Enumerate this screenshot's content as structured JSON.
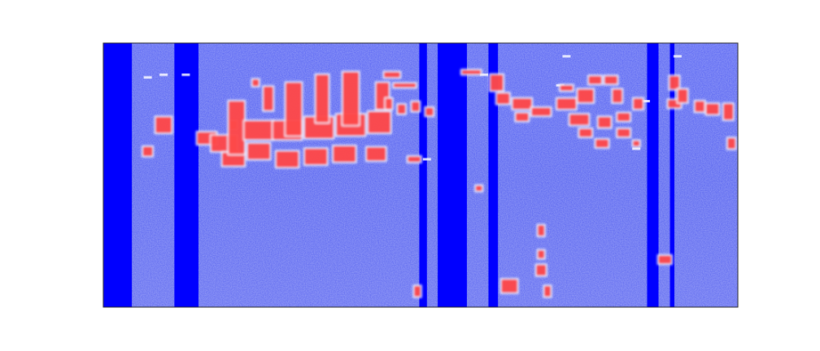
{
  "chart_data": {
    "type": "heatmap",
    "description_visible_text": "",
    "title": "",
    "xlabel": "",
    "ylabel": "",
    "axes_ticks": false,
    "grid": false,
    "legend": "none",
    "colormap": {
      "background": "#4a5af0",
      "strong_low": "#0000ff",
      "high": "#ff3030",
      "mid_high": "#f0f0ff"
    },
    "x_range": [
      0,
      1
    ],
    "y_range": [
      0,
      1
    ],
    "dark_columns": [
      {
        "x0": 0.0,
        "x1": 0.045
      },
      {
        "x0": 0.112,
        "x1": 0.15
      },
      {
        "x0": 0.498,
        "x1": 0.51
      },
      {
        "x0": 0.527,
        "x1": 0.573
      },
      {
        "x0": 0.607,
        "x1": 0.622
      },
      {
        "x0": 0.857,
        "x1": 0.875
      },
      {
        "x0": 0.893,
        "x1": 0.9
      }
    ],
    "red_blobs": [
      {
        "x": 0.205,
        "y": 0.69,
        "w": 0.01,
        "h": 0.03
      },
      {
        "x": 0.24,
        "y": 0.85,
        "w": 0.01,
        "h": 0.025
      },
      {
        "x": 0.095,
        "y": 0.69,
        "w": 0.025,
        "h": 0.06
      },
      {
        "x": 0.07,
        "y": 0.59,
        "w": 0.015,
        "h": 0.035
      },
      {
        "x": 0.163,
        "y": 0.64,
        "w": 0.03,
        "h": 0.045
      },
      {
        "x": 0.19,
        "y": 0.62,
        "w": 0.04,
        "h": 0.06
      },
      {
        "x": 0.205,
        "y": 0.56,
        "w": 0.035,
        "h": 0.05
      },
      {
        "x": 0.21,
        "y": 0.68,
        "w": 0.025,
        "h": 0.2
      },
      {
        "x": 0.245,
        "y": 0.67,
        "w": 0.045,
        "h": 0.07
      },
      {
        "x": 0.245,
        "y": 0.59,
        "w": 0.035,
        "h": 0.06
      },
      {
        "x": 0.26,
        "y": 0.79,
        "w": 0.015,
        "h": 0.09
      },
      {
        "x": 0.29,
        "y": 0.67,
        "w": 0.045,
        "h": 0.07
      },
      {
        "x": 0.29,
        "y": 0.56,
        "w": 0.035,
        "h": 0.06
      },
      {
        "x": 0.3,
        "y": 0.75,
        "w": 0.025,
        "h": 0.2
      },
      {
        "x": 0.34,
        "y": 0.68,
        "w": 0.045,
        "h": 0.08
      },
      {
        "x": 0.335,
        "y": 0.57,
        "w": 0.035,
        "h": 0.06
      },
      {
        "x": 0.345,
        "y": 0.79,
        "w": 0.02,
        "h": 0.18
      },
      {
        "x": 0.39,
        "y": 0.69,
        "w": 0.045,
        "h": 0.08
      },
      {
        "x": 0.38,
        "y": 0.58,
        "w": 0.035,
        "h": 0.06
      },
      {
        "x": 0.39,
        "y": 0.79,
        "w": 0.025,
        "h": 0.2
      },
      {
        "x": 0.435,
        "y": 0.7,
        "w": 0.035,
        "h": 0.08
      },
      {
        "x": 0.43,
        "y": 0.58,
        "w": 0.03,
        "h": 0.05
      },
      {
        "x": 0.44,
        "y": 0.8,
        "w": 0.02,
        "h": 0.1
      },
      {
        "x": 0.455,
        "y": 0.88,
        "w": 0.025,
        "h": 0.02
      },
      {
        "x": 0.45,
        "y": 0.77,
        "w": 0.01,
        "h": 0.04
      },
      {
        "x": 0.47,
        "y": 0.75,
        "w": 0.012,
        "h": 0.035
      },
      {
        "x": 0.492,
        "y": 0.76,
        "w": 0.012,
        "h": 0.035
      },
      {
        "x": 0.514,
        "y": 0.74,
        "w": 0.012,
        "h": 0.03
      },
      {
        "x": 0.475,
        "y": 0.84,
        "w": 0.035,
        "h": 0.015
      },
      {
        "x": 0.49,
        "y": 0.56,
        "w": 0.02,
        "h": 0.02
      },
      {
        "x": 0.592,
        "y": 0.45,
        "w": 0.01,
        "h": 0.02
      },
      {
        "x": 0.58,
        "y": 0.89,
        "w": 0.03,
        "h": 0.015
      },
      {
        "x": 0.495,
        "y": 0.06,
        "w": 0.01,
        "h": 0.04
      },
      {
        "x": 0.62,
        "y": 0.85,
        "w": 0.02,
        "h": 0.06
      },
      {
        "x": 0.63,
        "y": 0.79,
        "w": 0.02,
        "h": 0.04
      },
      {
        "x": 0.66,
        "y": 0.77,
        "w": 0.03,
        "h": 0.04
      },
      {
        "x": 0.66,
        "y": 0.72,
        "w": 0.02,
        "h": 0.03
      },
      {
        "x": 0.69,
        "y": 0.74,
        "w": 0.03,
        "h": 0.03
      },
      {
        "x": 0.73,
        "y": 0.77,
        "w": 0.03,
        "h": 0.04
      },
      {
        "x": 0.73,
        "y": 0.83,
        "w": 0.02,
        "h": 0.02
      },
      {
        "x": 0.75,
        "y": 0.71,
        "w": 0.03,
        "h": 0.04
      },
      {
        "x": 0.76,
        "y": 0.66,
        "w": 0.02,
        "h": 0.03
      },
      {
        "x": 0.76,
        "y": 0.8,
        "w": 0.025,
        "h": 0.05
      },
      {
        "x": 0.775,
        "y": 0.86,
        "w": 0.02,
        "h": 0.03
      },
      {
        "x": 0.786,
        "y": 0.62,
        "w": 0.02,
        "h": 0.03
      },
      {
        "x": 0.79,
        "y": 0.7,
        "w": 0.02,
        "h": 0.04
      },
      {
        "x": 0.8,
        "y": 0.86,
        "w": 0.02,
        "h": 0.03
      },
      {
        "x": 0.81,
        "y": 0.8,
        "w": 0.015,
        "h": 0.05
      },
      {
        "x": 0.82,
        "y": 0.72,
        "w": 0.02,
        "h": 0.03
      },
      {
        "x": 0.82,
        "y": 0.66,
        "w": 0.02,
        "h": 0.03
      },
      {
        "x": 0.843,
        "y": 0.77,
        "w": 0.015,
        "h": 0.04
      },
      {
        "x": 0.84,
        "y": 0.62,
        "w": 0.01,
        "h": 0.02
      },
      {
        "x": 0.9,
        "y": 0.77,
        "w": 0.02,
        "h": 0.03
      },
      {
        "x": 0.9,
        "y": 0.85,
        "w": 0.015,
        "h": 0.05
      },
      {
        "x": 0.913,
        "y": 0.8,
        "w": 0.015,
        "h": 0.05
      },
      {
        "x": 0.94,
        "y": 0.76,
        "w": 0.015,
        "h": 0.04
      },
      {
        "x": 0.96,
        "y": 0.75,
        "w": 0.02,
        "h": 0.04
      },
      {
        "x": 0.985,
        "y": 0.74,
        "w": 0.015,
        "h": 0.06
      },
      {
        "x": 0.99,
        "y": 0.62,
        "w": 0.012,
        "h": 0.04
      },
      {
        "x": 0.885,
        "y": 0.18,
        "w": 0.02,
        "h": 0.03
      },
      {
        "x": 0.69,
        "y": 0.14,
        "w": 0.015,
        "h": 0.04
      },
      {
        "x": 0.64,
        "y": 0.08,
        "w": 0.025,
        "h": 0.05
      },
      {
        "x": 0.69,
        "y": 0.29,
        "w": 0.01,
        "h": 0.04
      },
      {
        "x": 0.69,
        "y": 0.2,
        "w": 0.01,
        "h": 0.03
      },
      {
        "x": 0.7,
        "y": 0.06,
        "w": 0.01,
        "h": 0.04
      }
    ],
    "white_streaks": [
      {
        "x": 0.07,
        "y": 0.87
      },
      {
        "x": 0.13,
        "y": 0.88
      },
      {
        "x": 0.6,
        "y": 0.88
      },
      {
        "x": 0.73,
        "y": 0.95
      },
      {
        "x": 0.72,
        "y": 0.84
      },
      {
        "x": 0.855,
        "y": 0.78
      },
      {
        "x": 0.84,
        "y": 0.6
      },
      {
        "x": 0.51,
        "y": 0.56
      },
      {
        "x": 0.095,
        "y": 0.88
      },
      {
        "x": 0.905,
        "y": 0.95
      }
    ]
  }
}
